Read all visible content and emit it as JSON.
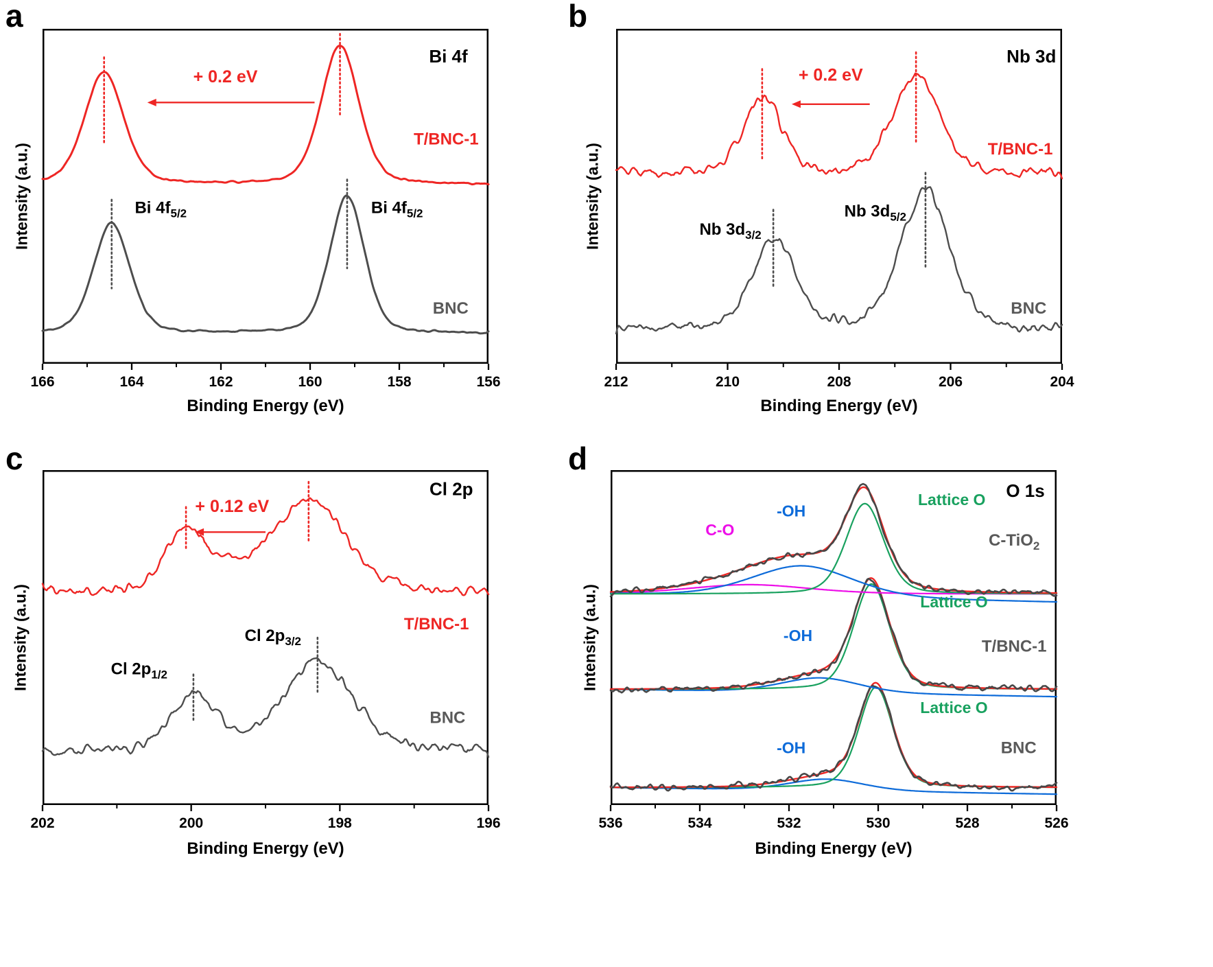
{
  "figure": {
    "background": "#ffffff",
    "panels": [
      "a",
      "b",
      "c",
      "d"
    ]
  },
  "chart_data": [
    {
      "id": "a",
      "panel_letter": "a",
      "type": "line",
      "title": "Bi 4f",
      "title_pos": {
        "x": 156.9,
        "y": 0.9
      },
      "xlabel": "Binding Energy (eV)",
      "ylabel": "Intensity (a.u.)",
      "x_left": 166,
      "x_right": 156,
      "x_minor_step": 1,
      "x_ticks": [
        166,
        164,
        162,
        160,
        158,
        156
      ],
      "series": [
        {
          "name": "T/BNC-1",
          "color": "#ee2624",
          "width": 3,
          "offset": 0.535,
          "noise": 0.0018,
          "peaks": [
            {
              "c": 164.62,
              "w": 0.52,
              "a": 0.335
            },
            {
              "c": 159.33,
              "w": 0.5,
              "a": 0.415
            }
          ]
        },
        {
          "name": "BNC",
          "color": "#4d4d4d",
          "width": 3,
          "offset": 0.09,
          "noise": 0.0018,
          "peaks": [
            {
              "c": 164.45,
              "w": 0.48,
              "a": 0.33
            },
            {
              "c": 159.17,
              "w": 0.46,
              "a": 0.41
            }
          ]
        }
      ],
      "guides": [
        {
          "x": 164.62,
          "y1": 0.655,
          "y2": 0.915,
          "color": "#ee2624"
        },
        {
          "x": 159.33,
          "y1": 0.74,
          "y2": 0.985,
          "color": "#ee2624"
        },
        {
          "x": 164.45,
          "y1": 0.225,
          "y2": 0.49,
          "color": "#4d4d4d"
        },
        {
          "x": 159.17,
          "y1": 0.285,
          "y2": 0.55,
          "color": "#4d4d4d"
        }
      ],
      "arrows": [
        {
          "x_from": 159.9,
          "x_to": 163.65,
          "y": 0.78,
          "color": "#ee2624"
        }
      ],
      "annotations": [
        {
          "parts": [
            {
              "t": "+ 0.2 eV"
            }
          ],
          "x": 161.9,
          "y": 0.84,
          "color": "#ee2624",
          "size": 25
        },
        {
          "parts": [
            {
              "t": "Bi 4f"
            },
            {
              "t": "5/2",
              "sub": true
            }
          ],
          "x": 163.35,
          "y": 0.45,
          "color": "#000000",
          "size": 24
        },
        {
          "parts": [
            {
              "t": "Bi 4f"
            },
            {
              "t": "5/2",
              "sub": true
            }
          ],
          "x": 158.05,
          "y": 0.45,
          "color": "#000000",
          "size": 24
        },
        {
          "parts": [
            {
              "t": "T/BNC-1"
            }
          ],
          "x": 156.95,
          "y": 0.655,
          "color": "#ee2624",
          "size": 24
        },
        {
          "parts": [
            {
              "t": "BNC"
            }
          ],
          "x": 156.85,
          "y": 0.15,
          "color": "#595959",
          "size": 24
        }
      ]
    },
    {
      "id": "b",
      "panel_letter": "b",
      "type": "line",
      "title": "Nb 3d",
      "title_pos": {
        "x": 204.55,
        "y": 0.9
      },
      "xlabel": "Binding Energy (eV)",
      "ylabel": "Intensity (a.u.)",
      "x_left": 212,
      "x_right": 204,
      "x_minor_step": 1,
      "x_ticks": [
        212,
        210,
        208,
        206,
        204
      ],
      "series": [
        {
          "name": "T/BNC-1",
          "color": "#ee2624",
          "width": 2.4,
          "offset": 0.565,
          "noise": 0.011,
          "peaks": [
            {
              "c": 209.38,
              "w": 0.42,
              "a": 0.225
            },
            {
              "c": 206.62,
              "w": 0.5,
              "a": 0.3
            }
          ]
        },
        {
          "name": "BNC",
          "color": "#4d4d4d",
          "width": 2.4,
          "offset": 0.1,
          "noise": 0.011,
          "peaks": [
            {
              "c": 209.18,
              "w": 0.46,
              "a": 0.27
            },
            {
              "c": 206.45,
              "w": 0.52,
              "a": 0.42
            }
          ]
        }
      ],
      "guides": [
        {
          "x": 209.38,
          "y1": 0.61,
          "y2": 0.88,
          "color": "#ee2624"
        },
        {
          "x": 206.62,
          "y1": 0.655,
          "y2": 0.93,
          "color": "#ee2624"
        },
        {
          "x": 209.18,
          "y1": 0.225,
          "y2": 0.46,
          "color": "#4d4d4d"
        },
        {
          "x": 206.45,
          "y1": 0.29,
          "y2": 0.57,
          "color": "#4d4d4d"
        }
      ],
      "arrows": [
        {
          "x_from": 207.45,
          "x_to": 208.85,
          "y": 0.775,
          "color": "#ee2624"
        }
      ],
      "annotations": [
        {
          "parts": [
            {
              "t": "+ 0.2 eV"
            }
          ],
          "x": 208.15,
          "y": 0.845,
          "color": "#ee2624",
          "size": 25
        },
        {
          "parts": [
            {
              "t": "Nb 3d"
            },
            {
              "t": "3/2",
              "sub": true
            }
          ],
          "x": 209.95,
          "y": 0.385,
          "color": "#000000",
          "size": 24
        },
        {
          "parts": [
            {
              "t": "Nb 3d"
            },
            {
              "t": "5/2",
              "sub": true
            }
          ],
          "x": 207.35,
          "y": 0.44,
          "color": "#000000",
          "size": 24
        },
        {
          "parts": [
            {
              "t": "T/BNC-1"
            }
          ],
          "x": 204.75,
          "y": 0.625,
          "color": "#ee2624",
          "size": 24
        },
        {
          "parts": [
            {
              "t": "BNC"
            }
          ],
          "x": 204.6,
          "y": 0.15,
          "color": "#595959",
          "size": 24
        }
      ]
    },
    {
      "id": "c",
      "panel_letter": "c",
      "type": "line",
      "title": "Cl 2p",
      "title_pos": {
        "x": 196.5,
        "y": 0.925
      },
      "xlabel": "Binding Energy (eV)",
      "ylabel": "Intensity (a.u.)",
      "x_left": 202,
      "x_right": 196,
      "x_minor_step": 1,
      "x_ticks": [
        202,
        200,
        198,
        196
      ],
      "series": [
        {
          "name": "T/BNC-1",
          "color": "#ee2624",
          "width": 2.4,
          "offset": 0.635,
          "noise": 0.01,
          "peaks": [
            {
              "c": 200.07,
              "w": 0.33,
              "a": 0.175
            },
            {
              "c": 199.4,
              "w": 0.5,
              "a": 0.035
            },
            {
              "c": 198.42,
              "w": 0.58,
              "a": 0.27
            }
          ]
        },
        {
          "name": "BNC",
          "color": "#4d4d4d",
          "width": 2.4,
          "offset": 0.16,
          "noise": 0.01,
          "peaks": [
            {
              "c": 199.97,
              "w": 0.35,
              "a": 0.17
            },
            {
              "c": 198.3,
              "w": 0.55,
              "a": 0.27
            }
          ]
        }
      ],
      "guides": [
        {
          "x": 200.07,
          "y1": 0.765,
          "y2": 0.89,
          "color": "#ee2624"
        },
        {
          "x": 198.42,
          "y1": 0.785,
          "y2": 0.965,
          "color": "#ee2624"
        },
        {
          "x": 199.97,
          "y1": 0.25,
          "y2": 0.39,
          "color": "#4d4d4d"
        },
        {
          "x": 198.3,
          "y1": 0.335,
          "y2": 0.5,
          "color": "#4d4d4d"
        }
      ],
      "arrows": [
        {
          "x_from": 199.0,
          "x_to": 199.95,
          "y": 0.815,
          "color": "#ee2624"
        }
      ],
      "annotations": [
        {
          "parts": [
            {
              "t": "+ 0.12 eV"
            }
          ],
          "x": 199.45,
          "y": 0.875,
          "color": "#ee2624",
          "size": 25
        },
        {
          "parts": [
            {
              "t": "Cl 2p"
            },
            {
              "t": "1/2",
              "sub": true
            }
          ],
          "x": 200.7,
          "y": 0.39,
          "color": "#000000",
          "size": 24
        },
        {
          "parts": [
            {
              "t": "Cl 2p"
            },
            {
              "t": "3/2",
              "sub": true
            }
          ],
          "x": 198.9,
          "y": 0.49,
          "color": "#000000",
          "size": 24
        },
        {
          "parts": [
            {
              "t": "T/BNC-1"
            }
          ],
          "x": 196.7,
          "y": 0.525,
          "color": "#ee2624",
          "size": 24
        },
        {
          "parts": [
            {
              "t": "BNC"
            }
          ],
          "x": 196.55,
          "y": 0.245,
          "color": "#595959",
          "size": 24
        }
      ]
    },
    {
      "id": "d",
      "panel_letter": "d",
      "type": "line",
      "title": "O 1s",
      "title_pos": {
        "x": 526.7,
        "y": 0.92
      },
      "xlabel": "Binding Energy (eV)",
      "ylabel": "Intensity (a.u.)",
      "x_left": 536,
      "x_right": 526,
      "x_minor_step": 1,
      "x_ticks": [
        536,
        534,
        532,
        530,
        528,
        526
      ],
      "series": [
        {
          "name": "BNC -OH",
          "color": "#0d6bd9",
          "width": 2.2,
          "offset": 0.052,
          "slope": -0.02,
          "peaks": [
            {
              "c": 531.15,
              "w": 1.0,
              "a": 0.035
            }
          ]
        },
        {
          "name": "BNC Lattice O",
          "color": "#19a15f",
          "width": 2.2,
          "offset": 0.052,
          "peaks": [
            {
              "c": 530.05,
              "w": 0.45,
              "a": 0.3
            }
          ]
        },
        {
          "name": "BNC envelope",
          "color": "#ee2624",
          "width": 2.4,
          "offset": 0.052,
          "peaks": [
            {
              "c": 530.05,
              "w": 0.45,
              "a": 0.3
            },
            {
              "c": 531.15,
              "w": 1.0,
              "a": 0.03
            }
          ]
        },
        {
          "name": "BNC data",
          "color": "#474747",
          "width": 2.6,
          "offset": 0.052,
          "noise": 0.0065,
          "peaks": [
            {
              "c": 530.05,
              "w": 0.45,
              "a": 0.3
            },
            {
              "c": 531.15,
              "w": 1.0,
              "a": 0.03
            }
          ]
        },
        {
          "name": "T/BNC-1 -OH",
          "color": "#0d6bd9",
          "width": 2.2,
          "offset": 0.345,
          "slope": -0.022,
          "peaks": [
            {
              "c": 531.3,
              "w": 1.05,
              "a": 0.045
            }
          ]
        },
        {
          "name": "T/BNC-1 Lattice O",
          "color": "#19a15f",
          "width": 2.2,
          "offset": 0.345,
          "peaks": [
            {
              "c": 530.15,
              "w": 0.48,
              "a": 0.315
            }
          ]
        },
        {
          "name": "T/BNC-1 envelope",
          "color": "#ee2624",
          "width": 2.4,
          "offset": 0.345,
          "peaks": [
            {
              "c": 530.15,
              "w": 0.48,
              "a": 0.315
            },
            {
              "c": 531.3,
              "w": 1.05,
              "a": 0.04
            }
          ]
        },
        {
          "name": "T/BNC-1 data",
          "color": "#474747",
          "width": 2.6,
          "offset": 0.345,
          "noise": 0.0065,
          "peaks": [
            {
              "c": 530.15,
              "w": 0.48,
              "a": 0.315
            },
            {
              "c": 531.3,
              "w": 1.05,
              "a": 0.04
            }
          ]
        },
        {
          "name": "C-TiO2 C-O",
          "color": "#ed0ee8",
          "width": 2.2,
          "offset": 0.63,
          "peaks": [
            {
              "c": 532.9,
              "w": 1.6,
              "a": 0.028
            }
          ]
        },
        {
          "name": "C-TiO2 -OH",
          "color": "#0d6bd9",
          "width": 2.2,
          "offset": 0.63,
          "slope": -0.025,
          "peaks": [
            {
              "c": 531.7,
              "w": 1.35,
              "a": 0.095
            }
          ]
        },
        {
          "name": "C-TiO2 Lattice O",
          "color": "#19a15f",
          "width": 2.2,
          "offset": 0.63,
          "peaks": [
            {
              "c": 530.3,
              "w": 0.5,
              "a": 0.27
            }
          ]
        },
        {
          "name": "C-TiO2 envelope",
          "color": "#ee2624",
          "width": 2.4,
          "offset": 0.63,
          "peaks": [
            {
              "c": 530.3,
              "w": 0.5,
              "a": 0.27
            },
            {
              "c": 531.7,
              "w": 1.35,
              "a": 0.09
            },
            {
              "c": 532.9,
              "w": 1.6,
              "a": 0.028
            }
          ]
        },
        {
          "name": "C-TiO2 data",
          "color": "#474747",
          "width": 2.6,
          "offset": 0.63,
          "noise": 0.006,
          "peaks": [
            {
              "c": 530.3,
              "w": 0.5,
              "a": 0.27
            },
            {
              "c": 531.7,
              "w": 1.35,
              "a": 0.09
            },
            {
              "c": 532.9,
              "w": 1.6,
              "a": 0.028
            }
          ]
        }
      ],
      "guides": [],
      "arrows": [],
      "annotations": [
        {
          "parts": [
            {
              "t": "C-O"
            }
          ],
          "x": 533.55,
          "y": 0.805,
          "color": "#ed0ee8",
          "size": 23
        },
        {
          "parts": [
            {
              "t": "-OH"
            }
          ],
          "x": 531.95,
          "y": 0.862,
          "color": "#0d6bd9",
          "size": 23
        },
        {
          "parts": [
            {
              "t": "Lattice O"
            }
          ],
          "x": 528.35,
          "y": 0.895,
          "color": "#19a15f",
          "size": 23
        },
        {
          "parts": [
            {
              "t": "C-TiO"
            },
            {
              "t": "2",
              "sub": true
            }
          ],
          "x": 526.95,
          "y": 0.775,
          "color": "#595959",
          "size": 24
        },
        {
          "parts": [
            {
              "t": "Lattice O"
            }
          ],
          "x": 528.3,
          "y": 0.59,
          "color": "#19a15f",
          "size": 23
        },
        {
          "parts": [
            {
              "t": "-OH"
            }
          ],
          "x": 531.8,
          "y": 0.49,
          "color": "#0d6bd9",
          "size": 23
        },
        {
          "parts": [
            {
              "t": "T/BNC-1"
            }
          ],
          "x": 526.95,
          "y": 0.458,
          "color": "#595959",
          "size": 24
        },
        {
          "parts": [
            {
              "t": "Lattice O"
            }
          ],
          "x": 528.3,
          "y": 0.275,
          "color": "#19a15f",
          "size": 23
        },
        {
          "parts": [
            {
              "t": "-OH"
            }
          ],
          "x": 531.95,
          "y": 0.155,
          "color": "#0d6bd9",
          "size": 23
        },
        {
          "parts": [
            {
              "t": "BNC"
            }
          ],
          "x": 526.85,
          "y": 0.155,
          "color": "#595959",
          "size": 24
        }
      ]
    }
  ]
}
